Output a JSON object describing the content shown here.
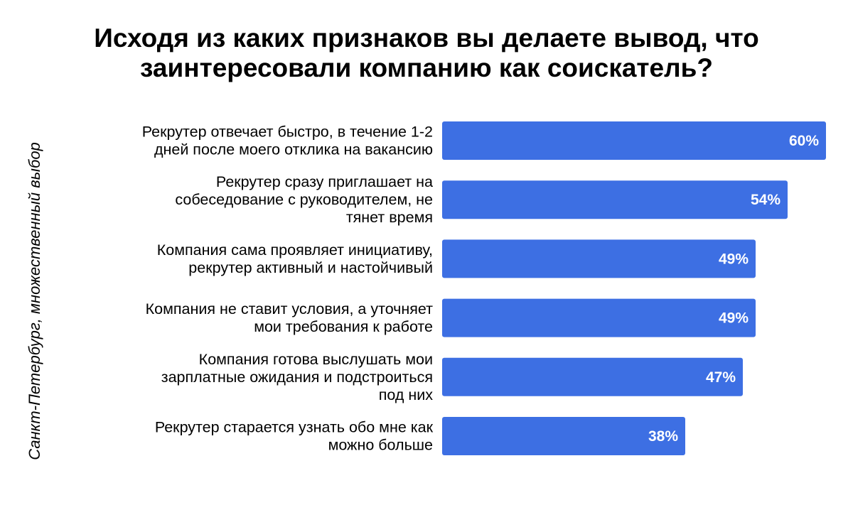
{
  "title_lines": [
    "Исходя из каких признаков вы делаете вывод, что",
    "заинтересовали компанию как соискатель?"
  ],
  "side_note": "Санкт-Петербург, множественный выбор",
  "colors": {
    "bar": "#3d6fe3",
    "value_text": "#ffffff",
    "label_text": "#000000"
  },
  "chart_data": {
    "type": "bar",
    "orientation": "horizontal",
    "title": "Исходя из каких признаков вы делаете вывод, что заинтересовали компанию как соискатель?",
    "categories": [
      [
        "Рекрутер отвечает быстро, в течение 1-2",
        "дней после моего отклика на вакансию"
      ],
      [
        "Рекрутер сразу приглашает на",
        "собеседование с руководителем, не",
        "тянет время"
      ],
      [
        "Компания сама проявляет инициативу,",
        "рекрутер активный и настойчивый"
      ],
      [
        "Компания не ставит условия, а уточняет",
        "мои требования к работе"
      ],
      [
        "Компания готова выслушать мои",
        "зарплатные ожидания и подстроиться",
        "под них"
      ],
      [
        "Рекрутер старается узнать обо мне как",
        "можно больше"
      ]
    ],
    "values": [
      60,
      54,
      49,
      49,
      47,
      38
    ],
    "value_labels": [
      "60%",
      "54%",
      "49%",
      "49%",
      "47%",
      "38%"
    ],
    "unit": "%",
    "xlim": [
      0,
      60
    ],
    "grid": false,
    "legend": "none"
  }
}
